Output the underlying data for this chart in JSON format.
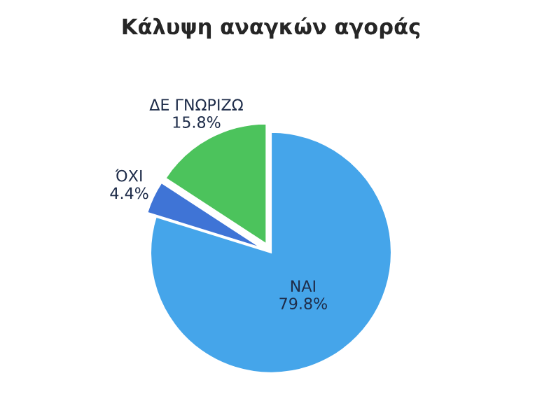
{
  "chart_data": {
    "type": "pie",
    "title": "Κάλυψη αναγκών αγοράς",
    "categories": [
      "ΝΑΙ",
      "ΌΧΙ",
      "ΔΕ ΓΝΩΡΙΖΩ"
    ],
    "values": [
      79.8,
      4.4,
      15.8
    ],
    "colors": [
      "#45a5ea",
      "#3f74d6",
      "#4cc35c"
    ],
    "value_labels": [
      "79.8%",
      "4.4%",
      "15.8%"
    ]
  }
}
